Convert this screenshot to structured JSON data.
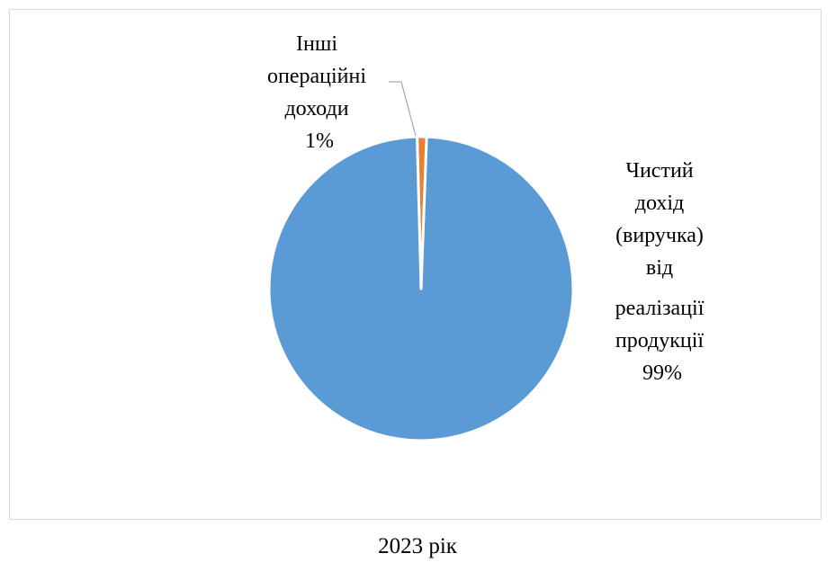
{
  "chart_data": {
    "type": "pie",
    "slices": [
      {
        "label_lines": [
          "Чистий",
          "дохід",
          "(виручка)",
          "від",
          "реалізації",
          "продукції"
        ],
        "percent_label": "99%",
        "value": 99,
        "color": "#5B9BD5"
      },
      {
        "label_lines": [
          "Інші",
          "операційні",
          "доходи"
        ],
        "percent_label": "1%",
        "value": 1,
        "color": "#ED7D31"
      }
    ],
    "legend": "none"
  },
  "caption": "2023 рік"
}
